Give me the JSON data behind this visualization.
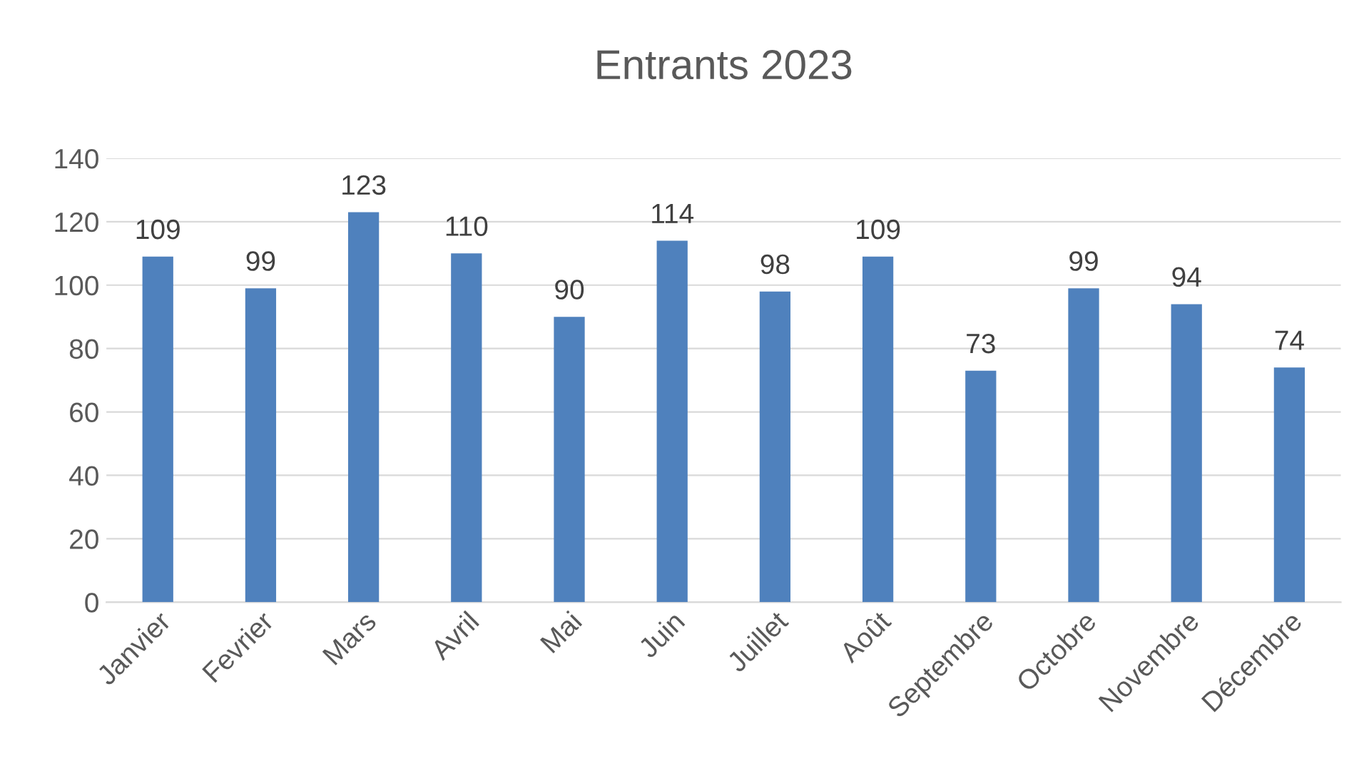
{
  "chart_data": {
    "type": "bar",
    "title": "Entrants 2023",
    "categories": [
      "Janvier",
      "Fevrier",
      "Mars",
      "Avril",
      "Mai",
      "Juin",
      "Juillet",
      "Août",
      "Septembre",
      "Octobre",
      "Novembre",
      "Décembre"
    ],
    "values": [
      109,
      99,
      123,
      110,
      90,
      114,
      98,
      109,
      73,
      99,
      94,
      74
    ],
    "color": "#4f81bd",
    "ylim": [
      0,
      140
    ],
    "yticks": [
      0,
      20,
      40,
      60,
      80,
      100,
      120,
      140
    ],
    "grid": "y",
    "data_labels": true,
    "legend": false
  }
}
